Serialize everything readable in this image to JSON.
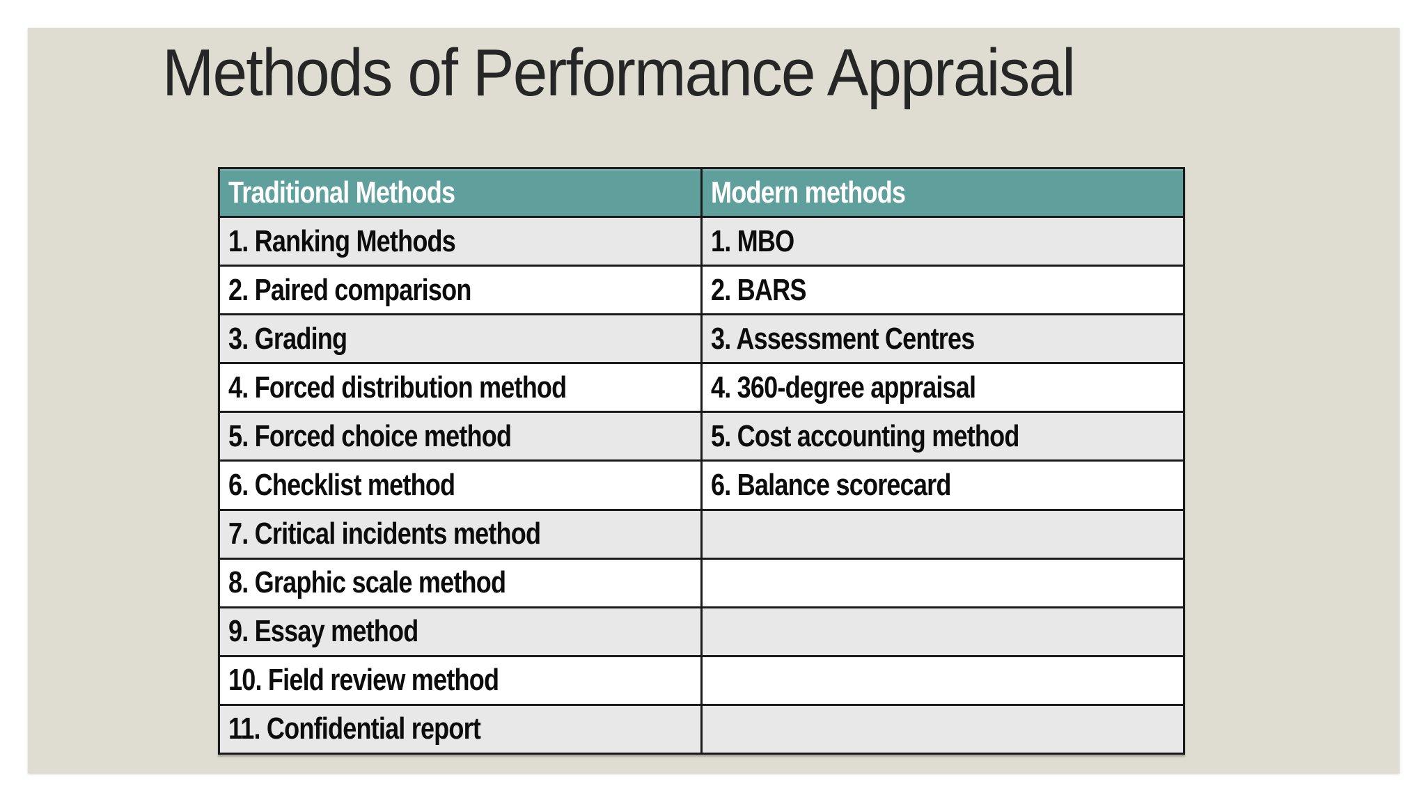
{
  "slide": {
    "title": "Methods of Performance Appraisal"
  },
  "table": {
    "headers": [
      "Traditional Methods",
      "Modern methods"
    ],
    "rows": [
      {
        "traditional": "1. Ranking Methods",
        "modern": "1. MBO"
      },
      {
        "traditional": "2. Paired comparison",
        "modern": "2. BARS"
      },
      {
        "traditional": "3. Grading",
        "modern": "3. Assessment Centres"
      },
      {
        "traditional": "4. Forced distribution method",
        "modern": "4. 360-degree appraisal"
      },
      {
        "traditional": "5. Forced choice method",
        "modern": "5. Cost accounting method"
      },
      {
        "traditional": "6. Checklist method",
        "modern": "6. Balance scorecard"
      },
      {
        "traditional": "7. Critical incidents method",
        "modern": ""
      },
      {
        "traditional": "8. Graphic scale method",
        "modern": ""
      },
      {
        "traditional": "9. Essay method",
        "modern": ""
      },
      {
        "traditional": "10. Field review method",
        "modern": ""
      },
      {
        "traditional": "11. Confidential report",
        "modern": ""
      }
    ]
  },
  "colors": {
    "header_teal": "#5fa09d",
    "row_stripe_gray": "#e8e8e8",
    "row_white": "#ffffff",
    "slide_background": "#dfddd1",
    "page_background": "#ffffff",
    "border_black": "#1a1a1a",
    "title_text": "#262626",
    "cell_text": "#0c0c0c",
    "header_text": "#ffffff"
  }
}
